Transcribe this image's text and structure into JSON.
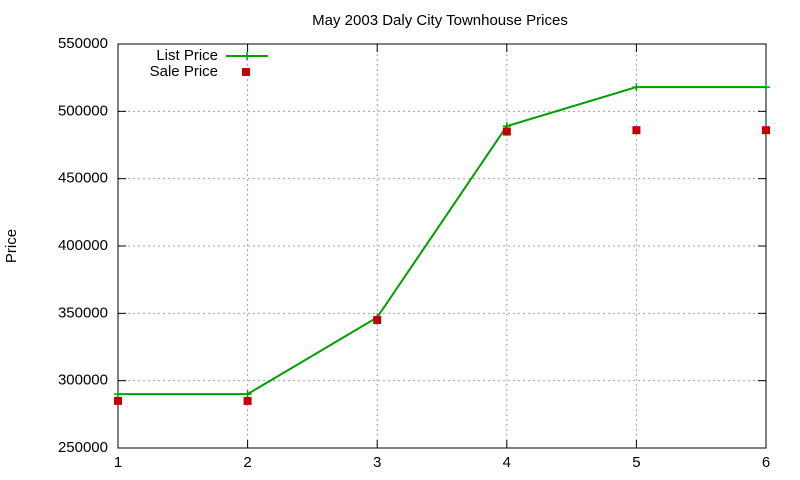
{
  "chart_data": {
    "type": "line",
    "title": "May 2003 Daly City Townhouse Prices",
    "y_label": "Price",
    "x": [
      1,
      2,
      3,
      4,
      5,
      6
    ],
    "xlim": [
      1,
      6
    ],
    "xticks": [
      1,
      2,
      3,
      4,
      5,
      6
    ],
    "ylim": [
      250000,
      550000
    ],
    "yticks": [
      250000,
      300000,
      350000,
      400000,
      450000,
      500000,
      550000
    ],
    "grid": true,
    "legend": "top-left",
    "series": [
      {
        "name": "List Price",
        "color": "#00a000",
        "style": "linespoints",
        "values": [
          290000,
          290000,
          347000,
          489000,
          518000,
          518000
        ]
      },
      {
        "name": "Sale Price",
        "color": "#c00000",
        "style": "points",
        "values": [
          285000,
          285000,
          345000,
          485000,
          486000,
          486000
        ]
      }
    ]
  }
}
